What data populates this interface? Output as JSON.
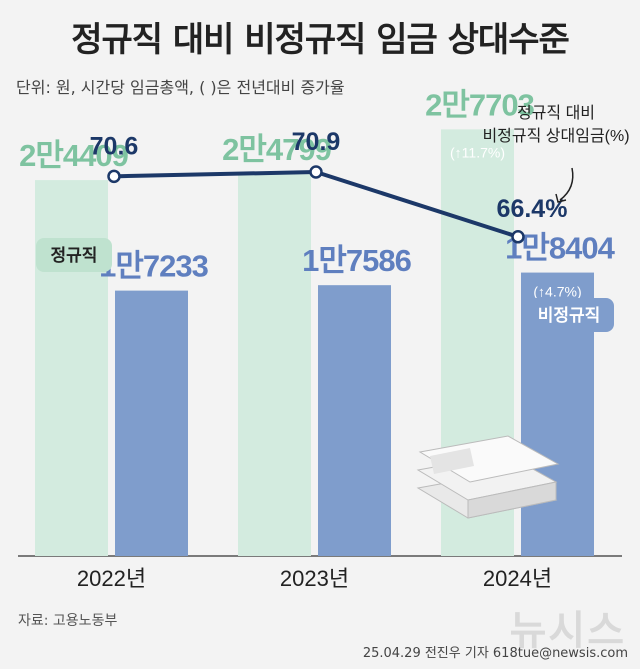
{
  "title": "정규직 대비 비정규직 임금 상대수준",
  "subtitle": "단위: 원, 시간당 임금총액, ( )은 전년대비 증가율",
  "source": "자료: 고용노동부",
  "credit": "25.04.29 전진우 기자 618tue@newsis.com",
  "watermark": "뉴시스",
  "colors": {
    "regular": "#d3ebdf",
    "regular_label": "#7ec3a0",
    "nonregular": "#7f9dcc",
    "nonregular_label": "#5f7fbf",
    "line": "#1c3868",
    "tag_regular_bg": "#bfe2cf",
    "tag_nonregular_bg": "#7f9dcc"
  },
  "chart_data": {
    "type": "bar",
    "categories": [
      "2022년",
      "2023년",
      "2024년"
    ],
    "series": [
      {
        "name": "정규직",
        "values": [
          24409,
          24799,
          27703
        ],
        "labels": [
          "2만4409",
          "2만4799",
          "2만7703"
        ],
        "growth": [
          "",
          "",
          "(↑11.7%)"
        ]
      },
      {
        "name": "비정규직",
        "values": [
          17233,
          17586,
          18404
        ],
        "labels": [
          "1만7233",
          "1만7586",
          "1만8404"
        ],
        "growth": [
          "",
          "",
          "(↑4.7%)"
        ]
      }
    ],
    "ratio_line": {
      "name": "정규직 대비 비정규직 상대임금(%)",
      "name_lines": [
        "정규직 대비",
        "비정규직 상대임금(%)"
      ],
      "values": [
        70.6,
        70.9,
        66.4
      ],
      "labels": [
        "70.6",
        "70.9",
        "66.4%"
      ]
    },
    "ylim": [
      0,
      30000
    ]
  }
}
